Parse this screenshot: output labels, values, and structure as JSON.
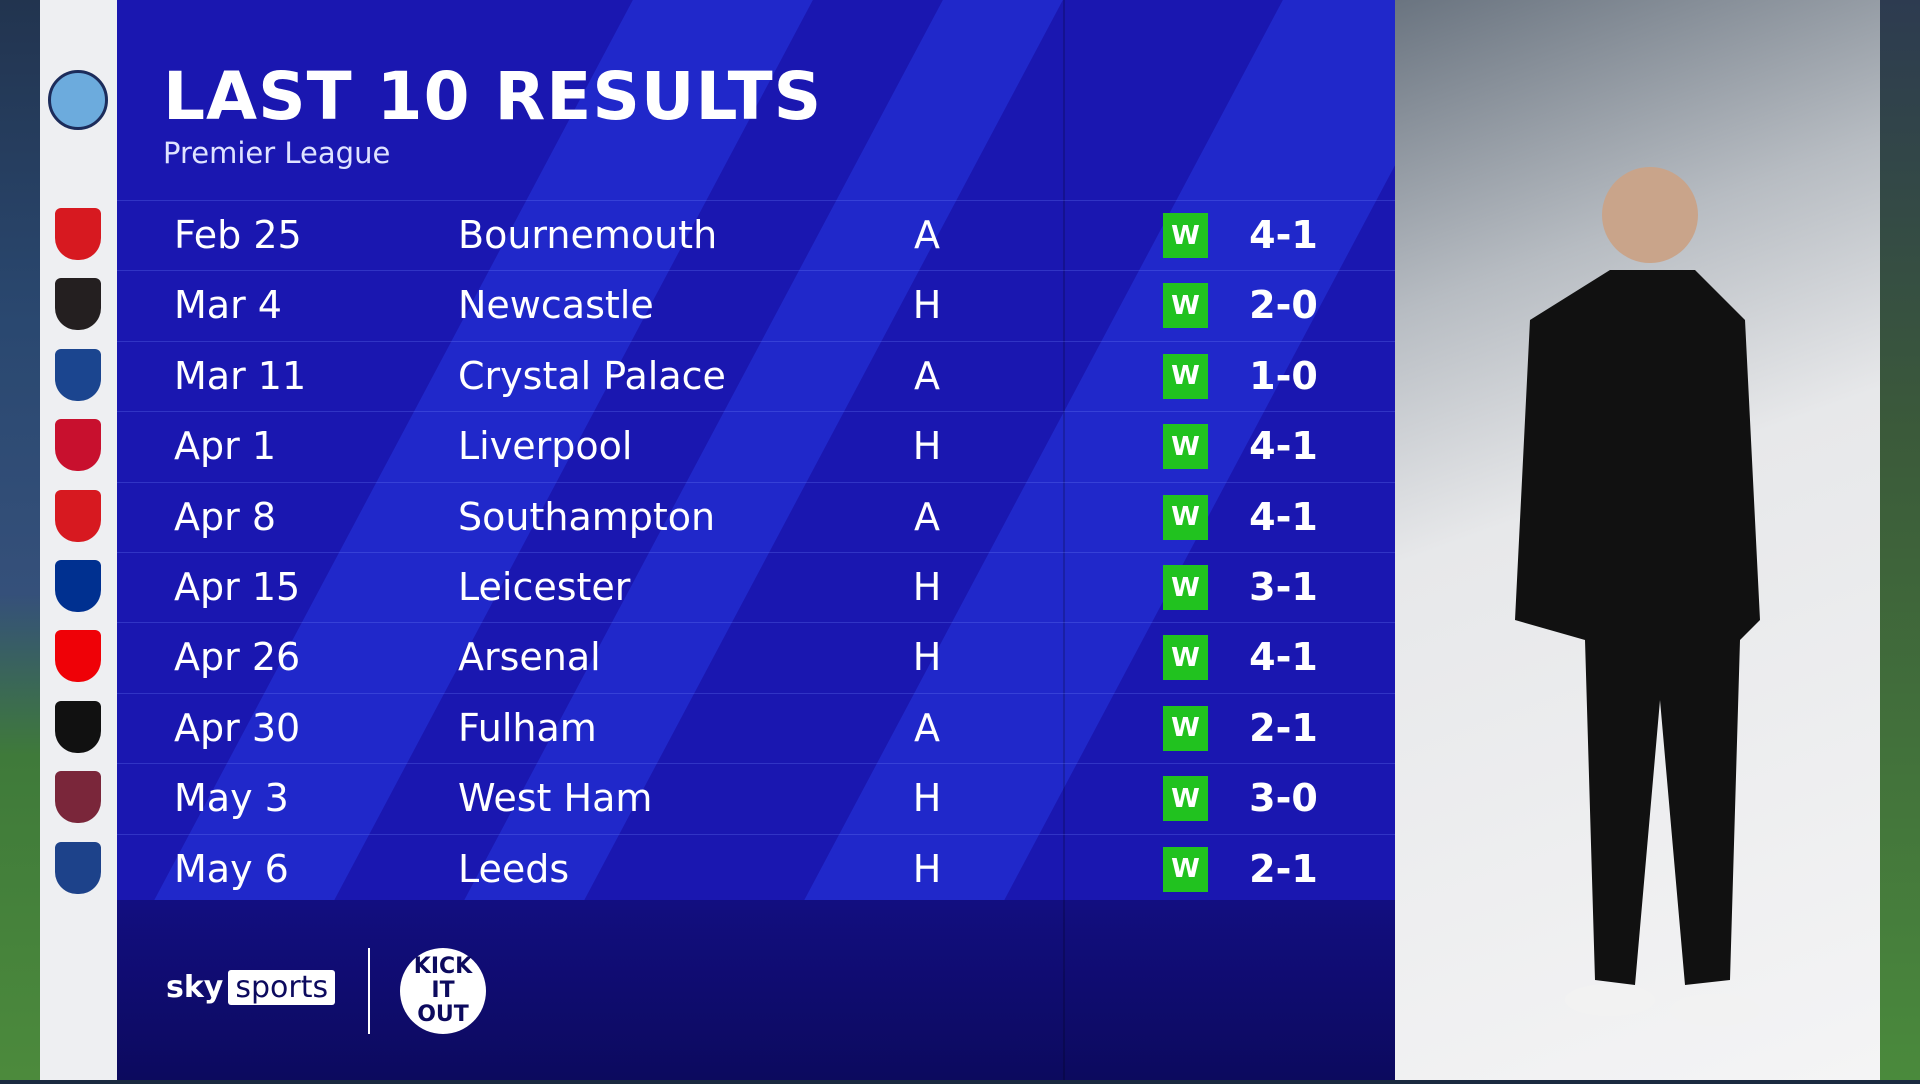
{
  "header": {
    "title": "LAST 10 RESULTS",
    "subtitle": "Premier League"
  },
  "team": {
    "crest": "MANCHESTER CITY",
    "crest_color": "#6cabdd"
  },
  "results": [
    {
      "date": "Feb 25",
      "opponent": "Bournemouth",
      "venue": "A",
      "result": "W",
      "score": "4-1",
      "crest_color": "#d71920"
    },
    {
      "date": "Mar 4",
      "opponent": "Newcastle",
      "venue": "H",
      "result": "W",
      "score": "2-0",
      "crest_color": "#241f20"
    },
    {
      "date": "Mar 11",
      "opponent": "Crystal Palace",
      "venue": "A",
      "result": "W",
      "score": "1-0",
      "crest_color": "#1b458f"
    },
    {
      "date": "Apr 1",
      "opponent": "Liverpool",
      "venue": "H",
      "result": "W",
      "score": "4-1",
      "crest_color": "#c8102e"
    },
    {
      "date": "Apr 8",
      "opponent": "Southampton",
      "venue": "A",
      "result": "W",
      "score": "4-1",
      "crest_color": "#d71920"
    },
    {
      "date": "Apr 15",
      "opponent": "Leicester",
      "venue": "H",
      "result": "W",
      "score": "3-1",
      "crest_color": "#003090"
    },
    {
      "date": "Apr 26",
      "opponent": "Arsenal",
      "venue": "H",
      "result": "W",
      "score": "4-1",
      "crest_color": "#ef0107"
    },
    {
      "date": "Apr 30",
      "opponent": "Fulham",
      "venue": "A",
      "result": "W",
      "score": "2-1",
      "crest_color": "#111111"
    },
    {
      "date": "May 3",
      "opponent": "West Ham",
      "venue": "H",
      "result": "W",
      "score": "3-0",
      "crest_color": "#7a263a"
    },
    {
      "date": "May 6",
      "opponent": "Leeds",
      "venue": "H",
      "result": "W",
      "score": "2-1",
      "crest_color": "#1d428a"
    }
  ],
  "colors": {
    "panel": "#1a17b0",
    "win": "#21c21f"
  },
  "footer": {
    "sky": "sky",
    "sports": "sports",
    "kick_it_out": "KICK IT OUT"
  }
}
